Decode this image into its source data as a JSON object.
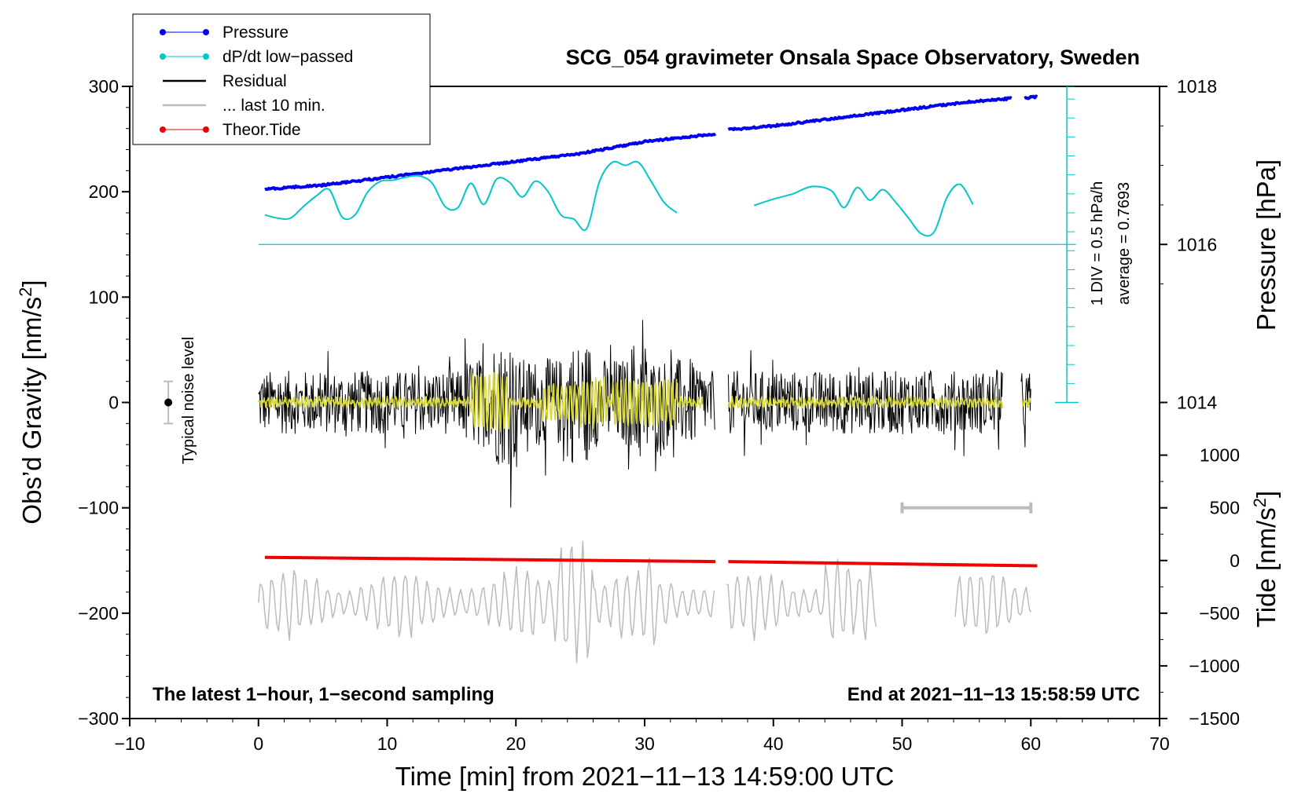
{
  "chart_data": {
    "type": "line",
    "title": "SCG_054 gravimeter Onsala Space Observatory, Sweden",
    "xlabel": "Time [min] from 2021−11−13 14:59:00 UTC",
    "ylabel_left": "Obs’d Gravity [nm/s",
    "ylabel_left_sup": "2",
    "ylabel_left_close": "]",
    "ylabel_right_pressure": "Pressure [hPa]",
    "ylabel_right_tide": "Tide [nm/s",
    "ylabel_right_tide_sup": "2",
    "ylabel_right_tide_close": "]",
    "xlim": [
      -10,
      70
    ],
    "ylim_left": [
      -300,
      300
    ],
    "x_ticks": [
      -10,
      0,
      10,
      20,
      30,
      40,
      50,
      60,
      70
    ],
    "x_tick_labels": [
      "−10",
      "0",
      "10",
      "20",
      "30",
      "40",
      "50",
      "60",
      "70"
    ],
    "y_ticks_left": [
      -300,
      -200,
      -100,
      0,
      100,
      200,
      300
    ],
    "y_tick_labels_left": [
      "−300",
      "−200",
      "−100",
      "0",
      "100",
      "200",
      "300"
    ],
    "pressure_axis": {
      "ticks": [
        1014,
        1016,
        1018
      ],
      "tick_labels": [
        "1014",
        "1016",
        "1018"
      ],
      "ref_value": 1016,
      "ref_gravity": 150,
      "gravity_per_hpa": 75
    },
    "tide_axis": {
      "ticks": [
        -1500,
        -1000,
        -500,
        0,
        500,
        1000
      ],
      "tick_labels": [
        "−1500",
        "−1000",
        "−500",
        "0",
        "500",
        "1000"
      ],
      "zero_gravity": -150,
      "gravity_per_unit": 0.1
    },
    "legend": [
      {
        "label": "Pressure",
        "color": "#0000ee",
        "marker": true
      },
      {
        "label": "dP/dt low−passed",
        "color": "#00c8c8",
        "marker": true
      },
      {
        "label": "Residual",
        "color": "#000000",
        "marker": false
      },
      {
        "label": "... last 10 min.",
        "color": "#bbbbbb",
        "marker": false
      },
      {
        "label": "Theor.Tide",
        "color": "#ee0000",
        "marker": true
      }
    ],
    "series": [
      {
        "name": "Pressure",
        "unit": "hPa",
        "color": "#0000ee",
        "segments": [
          {
            "x": [
              0.5,
              5,
              10,
              15,
              20,
              25,
              30,
              35.5
            ],
            "y": [
              1016.7,
              1016.75,
              1016.85,
              1016.95,
              1017.05,
              1017.15,
              1017.3,
              1017.4
            ]
          },
          {
            "x": [
              36.5,
              40,
              45,
              50,
              55,
              58.5
            ],
            "y": [
              1017.45,
              1017.5,
              1017.6,
              1017.7,
              1017.8,
              1017.85
            ]
          },
          {
            "x": [
              59.5,
              60.5
            ],
            "y": [
              1017.85,
              1017.87
            ]
          }
        ]
      },
      {
        "name": "dP/dt low−passed",
        "color": "#00c8c8",
        "segments": [
          {
            "x": [
              0.5,
              1.5,
              2.5,
              3.5,
              4.5,
              5.5,
              6.5,
              7.5,
              8.5,
              9.5,
              10.5,
              11.5,
              12.5,
              13.5,
              14.5,
              15.5,
              16.5,
              17.5,
              18.5,
              19.5,
              20.5,
              21.5,
              22.5,
              23.5,
              24.5,
              25.5,
              26.5,
              27.5,
              28.5,
              29.5,
              30.5,
              31.5,
              32.5
            ],
            "y": [
              178,
              175,
              175,
              186,
              196,
              202,
              176,
              178,
              200,
              210,
              211,
              214,
              215,
              208,
              186,
              185,
              208,
              188,
              212,
              209,
              195,
              210,
              200,
              178,
              174,
              165,
              210,
              228,
              225,
              228,
              210,
              190,
              180
            ]
          },
          {
            "x": [
              38.5,
              40,
              41.5,
              43,
              44.5,
              45.5,
              46.5,
              47.5,
              48.5,
              49.5,
              50.5,
              51.5,
              52.5,
              53.5,
              54.5,
              55.5
            ],
            "y": [
              187,
              193,
              198,
              205,
              201,
              185,
              204,
              192,
              202,
              190,
              175,
              160,
              162,
              195,
              207,
              188
            ]
          }
        ]
      },
      {
        "name": "Residual",
        "color": "#000000",
        "gaps": [
          [
            35.5,
            36.5
          ],
          [
            57.8,
            59.2
          ]
        ],
        "amplitude_max": 97,
        "amplitude_min": -101
      },
      {
        "name": "... last 10 min.",
        "color": "#bbbbbb",
        "note": "gravity residual of last 10 minutes, shown shifted"
      },
      {
        "name": "Theor.Tide",
        "unit": "nm/s²",
        "color": "#ee0000",
        "segments": [
          {
            "x": [
              0.5,
              35.5
            ],
            "y": [
              30,
              -10
            ]
          },
          {
            "x": [
              36.5,
              60.5
            ],
            "y": [
              -10,
              -50
            ]
          }
        ]
      }
    ],
    "pressure_div_scale": {
      "ticks_gravity": [
        0,
        18,
        36,
        54,
        72,
        90,
        108,
        126,
        144,
        162,
        180,
        198,
        216,
        234,
        252,
        270,
        288,
        300
      ]
    },
    "noise_bar": {
      "center": 0,
      "half_range": 20,
      "x": -7
    },
    "time_bar": {
      "x_start": 50,
      "x_end": 60,
      "y": -100
    }
  },
  "texts": {
    "noise_label": "Typical noise level",
    "div_label": "1 DIV = 0.5 hPa/h",
    "average_label": "average = 0.7693",
    "bottom_left": "The latest 1−hour, 1−second sampling",
    "bottom_right": "End at 2021−11−13 15:58:59 UTC"
  },
  "colors": {
    "pressure": "#0000ee",
    "dpdt": "#00c8c8",
    "residual": "#000000",
    "last10": "#bbbbbb",
    "tide": "#ee0000",
    "lowpass": "#d8d830"
  }
}
